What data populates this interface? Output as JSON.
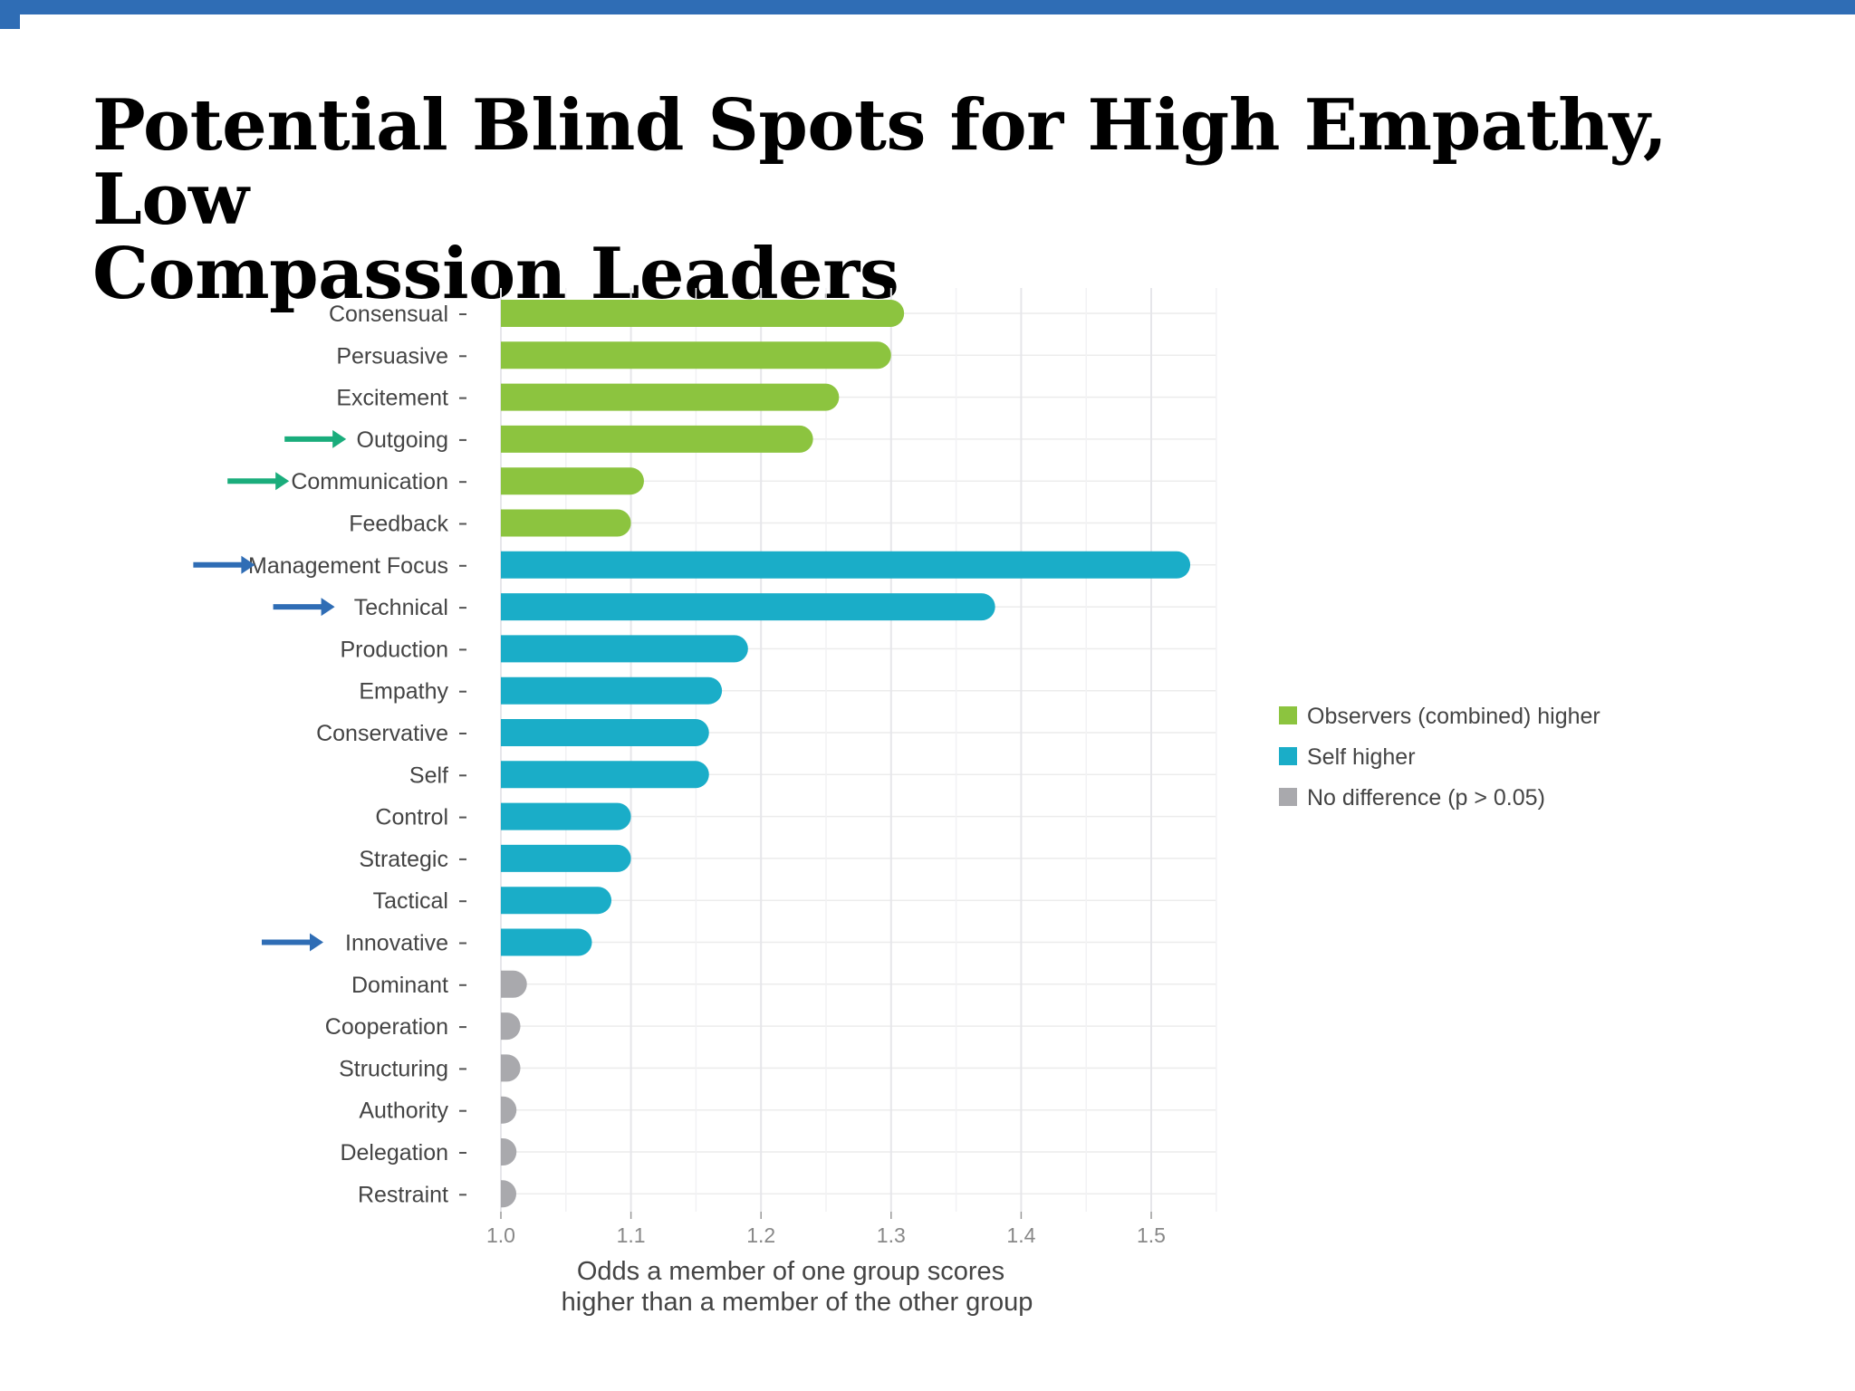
{
  "slide": {
    "title_line1": "Potential Blind Spots for High Empathy, Low",
    "title_line2": "Compassion Leaders",
    "accent_color": "#2f6db5"
  },
  "chart_data": {
    "type": "bar",
    "orientation": "horizontal",
    "xlabel_line1": "Odds a member of one group scores",
    "xlabel_line2": "higher than a member of the other group",
    "xlim": [
      1.0,
      1.55
    ],
    "xticks": [
      "1.0",
      "1.1",
      "1.2",
      "1.3",
      "1.4",
      "1.5"
    ],
    "grid": true,
    "legend_position": "right",
    "groups": [
      {
        "key": "observers",
        "label": "Observers (combined) higher",
        "color": "#8cc43f"
      },
      {
        "key": "self",
        "label": "Self higher",
        "color": "#1aadc8"
      },
      {
        "key": "none",
        "label": "No difference (p > 0.05)",
        "color": "#a9a9ad"
      }
    ],
    "bars": [
      {
        "category": "Consensual",
        "value": 1.31,
        "group": "observers"
      },
      {
        "category": "Persuasive",
        "value": 1.3,
        "group": "observers"
      },
      {
        "category": "Excitement",
        "value": 1.26,
        "group": "observers"
      },
      {
        "category": "Outgoing",
        "value": 1.24,
        "group": "observers",
        "arrow": "green"
      },
      {
        "category": "Communication",
        "value": 1.11,
        "group": "observers",
        "arrow": "green"
      },
      {
        "category": "Feedback",
        "value": 1.1,
        "group": "observers"
      },
      {
        "category": "Management Focus",
        "value": 1.53,
        "group": "self",
        "arrow": "blue"
      },
      {
        "category": "Technical",
        "value": 1.38,
        "group": "self",
        "arrow": "blue"
      },
      {
        "category": "Production",
        "value": 1.19,
        "group": "self"
      },
      {
        "category": "Empathy",
        "value": 1.17,
        "group": "self"
      },
      {
        "category": "Conservative",
        "value": 1.16,
        "group": "self"
      },
      {
        "category": "Self",
        "value": 1.16,
        "group": "self"
      },
      {
        "category": "Control",
        "value": 1.1,
        "group": "self"
      },
      {
        "category": "Strategic",
        "value": 1.1,
        "group": "self"
      },
      {
        "category": "Tactical",
        "value": 1.085,
        "group": "self"
      },
      {
        "category": "Innovative",
        "value": 1.07,
        "group": "self",
        "arrow": "blue"
      },
      {
        "category": "Dominant",
        "value": 1.02,
        "group": "none"
      },
      {
        "category": "Cooperation",
        "value": 1.015,
        "group": "none"
      },
      {
        "category": "Structuring",
        "value": 1.015,
        "group": "none"
      },
      {
        "category": "Authority",
        "value": 1.012,
        "group": "none"
      },
      {
        "category": "Delegation",
        "value": 1.012,
        "group": "none"
      },
      {
        "category": "Restraint",
        "value": 1.006,
        "group": "none"
      }
    ],
    "arrow_colors": {
      "green": "#1aad7c",
      "blue": "#2f6db5"
    }
  }
}
